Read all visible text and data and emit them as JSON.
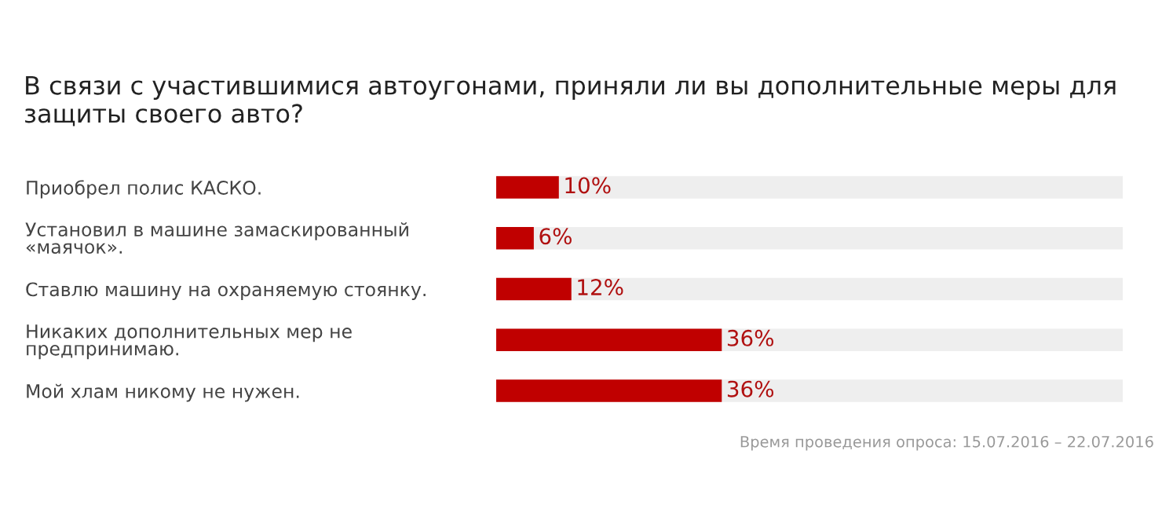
{
  "chart_data": {
    "type": "bar",
    "orientation": "horizontal",
    "title": "В связи с участившимися автоугонами, приняли ли вы дополнительные меры для защиты своего авто?",
    "categories": [
      "Приобрел полис КАСКО.",
      "Установил в машине замаскированный\n«маячок».",
      "Ставлю машину на охраняемую стоянку.",
      "Никаких дополнительных мер не\nпредпринимаю.",
      "Мой хлам никому не нужен."
    ],
    "values": [
      10,
      6,
      12,
      36,
      36
    ],
    "value_labels": [
      "10%",
      "6%",
      "12%",
      "36%",
      "36%"
    ],
    "color": "#c00000",
    "tick_labels": "y",
    "annotations": [
      "Время проведения опроса: 15.07.2016 – 22.07.2016"
    ]
  }
}
